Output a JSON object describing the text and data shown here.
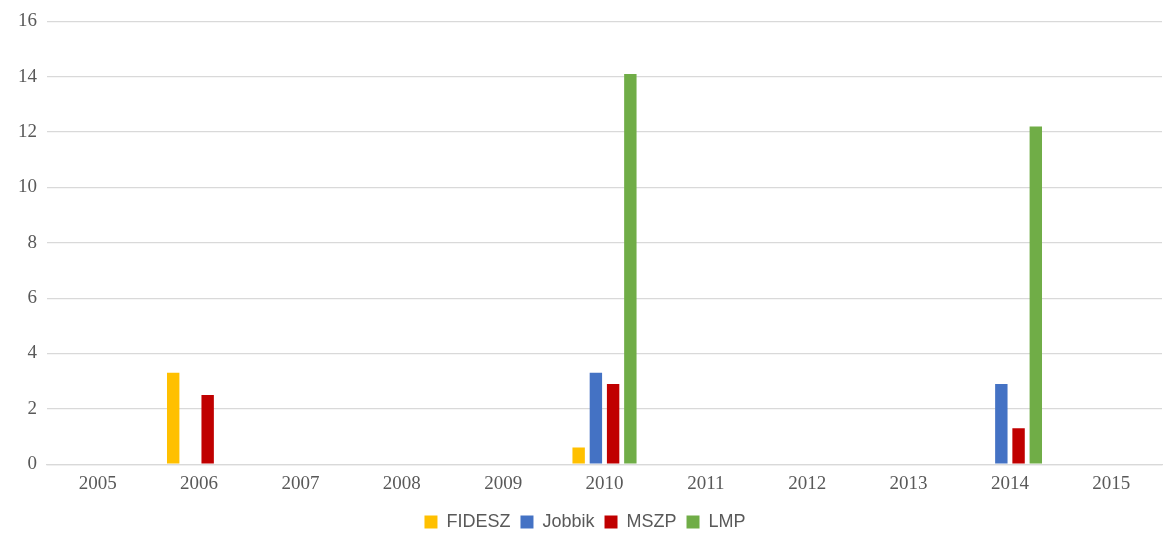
{
  "chart_data": {
    "type": "bar",
    "categories": [
      "2005",
      "2006",
      "2007",
      "2008",
      "2009",
      "2010",
      "2011",
      "2012",
      "2013",
      "2014",
      "2015"
    ],
    "series": [
      {
        "name": "FIDESZ",
        "color": "#ffc000",
        "values": [
          null,
          3.3,
          null,
          null,
          null,
          0.6,
          null,
          null,
          null,
          null,
          null
        ]
      },
      {
        "name": "Jobbik",
        "color": "#4472c4",
        "values": [
          null,
          null,
          null,
          null,
          null,
          3.3,
          null,
          null,
          null,
          2.9,
          null
        ]
      },
      {
        "name": "MSZP",
        "color": "#c00000",
        "values": [
          null,
          2.5,
          null,
          null,
          null,
          2.9,
          null,
          null,
          null,
          1.3,
          null
        ]
      },
      {
        "name": "LMP",
        "color": "#70ad47",
        "values": [
          null,
          null,
          null,
          null,
          null,
          14.1,
          null,
          null,
          null,
          12.2,
          null
        ]
      }
    ],
    "ylim": [
      0,
      16
    ],
    "yticks": [
      0,
      2,
      4,
      6,
      8,
      10,
      12,
      14,
      16
    ],
    "grid": "y",
    "legend": "bottom"
  }
}
